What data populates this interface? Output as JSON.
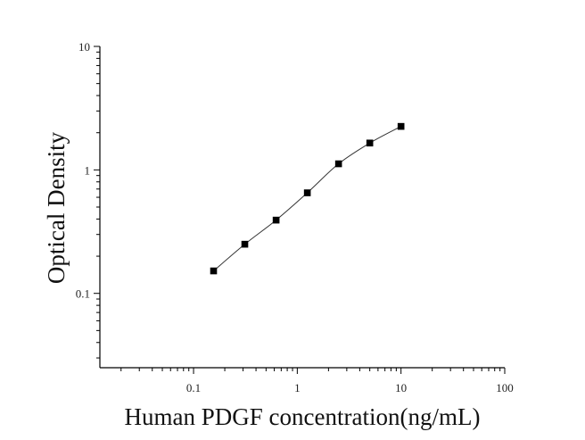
{
  "chart_data": {
    "type": "scatter",
    "title": "",
    "xlabel": "Human PDGF concentration(ng/mL)",
    "ylabel": "Optical Density",
    "x_scale": "log",
    "y_scale": "log",
    "xlim": [
      0.0125,
      100
    ],
    "ylim": [
      0.025,
      10
    ],
    "x_ticks": [
      0.1,
      1,
      10,
      100
    ],
    "x_tick_labels": [
      "0.1",
      "1",
      "10",
      "100"
    ],
    "y_ticks": [
      0.1,
      1,
      10
    ],
    "y_tick_labels": [
      "0.1",
      "1",
      "10"
    ],
    "grid": false,
    "legend": "none",
    "series": [
      {
        "x": [
          0.156,
          0.312,
          0.625,
          1.25,
          2.5,
          5,
          10
        ],
        "y": [
          0.152,
          0.25,
          0.392,
          0.652,
          1.12,
          1.65,
          2.25
        ],
        "marker": "square",
        "fit_line": true
      }
    ],
    "colors": {
      "marker": "#000000",
      "line": "#333333",
      "axis": "#000000"
    }
  }
}
